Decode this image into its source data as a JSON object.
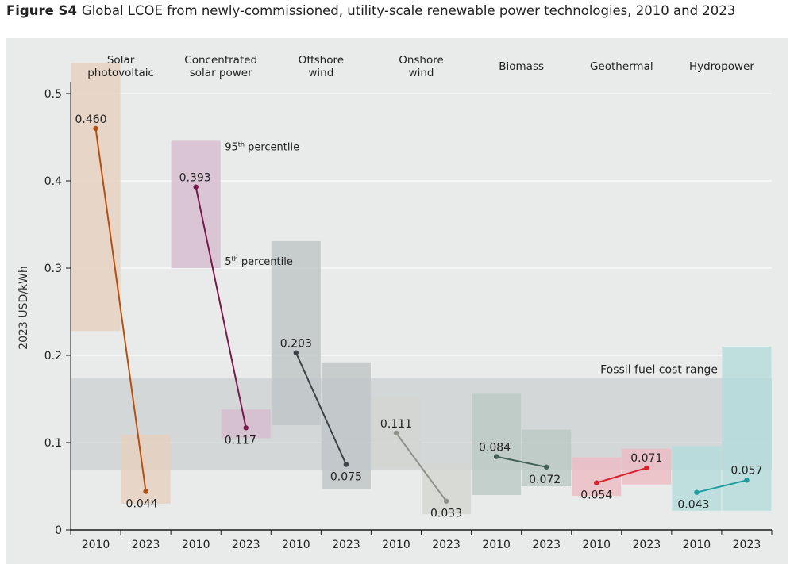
{
  "figure": {
    "label": "Figure S4",
    "title": "Global LCOE from newly-commissioned, utility-scale renewable power technologies, 2010 and 2023"
  },
  "chart_data": {
    "type": "slope-range",
    "title": "Global LCOE from newly-commissioned, utility-scale renewable power technologies, 2010 and 2023",
    "ylabel": "2023 USD/kWh",
    "ylim": [
      0,
      0.5
    ],
    "yticks": [
      "0",
      "0.1",
      "0.2",
      "0.3",
      "0.4",
      "0.5"
    ],
    "ytick_values": [
      0,
      0.1,
      0.2,
      0.3,
      0.4,
      0.5
    ],
    "grid": true,
    "fossil_range": {
      "label": "Fossil fuel cost range",
      "low": 0.069,
      "high": 0.174
    },
    "annotations": {
      "p95": "95th percentile",
      "p5": "5th percentile"
    },
    "technologies": [
      {
        "name": "Solar\nphotovoltaic",
        "color": "#b5500f",
        "band": "#e6cfbf",
        "years": [
          "2010",
          "2023"
        ],
        "values": [
          0.46,
          0.044
        ],
        "labels": [
          "0.460",
          "0.044"
        ],
        "p5": [
          0.228,
          0.03
        ],
        "p95": [
          0.535,
          0.109
        ]
      },
      {
        "name": "Concentrated\nsolar power",
        "color": "#7a1a4d",
        "band": "#d5bcce",
        "years": [
          "2010",
          "2023"
        ],
        "values": [
          0.393,
          0.117
        ],
        "labels": [
          "0.393",
          "0.117"
        ],
        "p5": [
          0.3,
          0.105
        ],
        "p95": [
          0.446,
          0.138
        ]
      },
      {
        "name": "Offshore\nwind",
        "color": "#3c4448",
        "band": "#bfc4c7",
        "years": [
          "2010",
          "2023"
        ],
        "values": [
          0.203,
          0.075
        ],
        "labels": [
          "0.203",
          "0.075"
        ],
        "p5": [
          0.12,
          0.047
        ],
        "p95": [
          0.331,
          0.192
        ]
      },
      {
        "name": "Onshore\nwind",
        "color": "#8e918a",
        "band": "#d4d6d2",
        "years": [
          "2010",
          "2023"
        ],
        "values": [
          0.111,
          0.033
        ],
        "labels": [
          "0.111",
          "0.033"
        ],
        "p5": [
          0.071,
          0.018
        ],
        "p95": [
          0.152,
          0.077
        ]
      },
      {
        "name": "Biomass",
        "color": "#45625a",
        "band": "#bcc9c5",
        "years": [
          "2010",
          "2023"
        ],
        "values": [
          0.084,
          0.072
        ],
        "labels": [
          "0.084",
          "0.072"
        ],
        "p5": [
          0.04,
          0.05
        ],
        "p95": [
          0.156,
          0.115
        ]
      },
      {
        "name": "Geothermal",
        "color": "#d81f2a",
        "band": "#edbcc4",
        "years": [
          "2010",
          "2023"
        ],
        "values": [
          0.054,
          0.071
        ],
        "labels": [
          "0.054",
          "0.071"
        ],
        "p5": [
          0.039,
          0.052
        ],
        "p95": [
          0.083,
          0.093
        ]
      },
      {
        "name": "Hydropower",
        "color": "#1f9ea0",
        "band": "#b5dcdc",
        "years": [
          "2010",
          "2023"
        ],
        "values": [
          0.043,
          0.057
        ],
        "labels": [
          "0.043",
          "0.057"
        ],
        "p5": [
          0.022,
          0.022
        ],
        "p95": [
          0.096,
          0.21
        ]
      }
    ]
  }
}
